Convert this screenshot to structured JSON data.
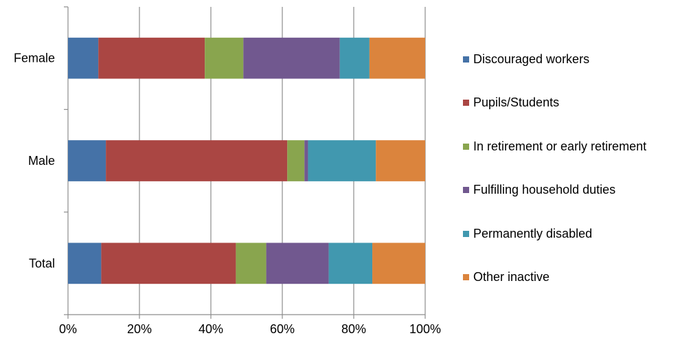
{
  "chart_data": {
    "type": "bar",
    "orientation": "horizontal",
    "stacked": true,
    "percent_stacked": true,
    "categories": [
      "Female",
      "Male",
      "Total"
    ],
    "series": [
      {
        "name": "Discouraged workers",
        "color": "#4572A7",
        "values": [
          8.5,
          10.6,
          9.3
        ]
      },
      {
        "name": "Pupils/Students",
        "color": "#AA4643",
        "values": [
          29.8,
          50.8,
          37.7
        ]
      },
      {
        "name": "In retirement or early retirement",
        "color": "#89A54E",
        "values": [
          10.8,
          4.8,
          8.5
        ]
      },
      {
        "name": "Fulfilling household duties",
        "color": "#71588F",
        "values": [
          27.0,
          1.0,
          17.5
        ]
      },
      {
        "name": "Permanently disabled",
        "color": "#4198AF",
        "values": [
          8.3,
          19.0,
          12.2
        ]
      },
      {
        "name": "Other inactive",
        "color": "#DB843D",
        "values": [
          15.6,
          13.8,
          14.8
        ]
      }
    ],
    "x_ticks": [
      "0%",
      "20%",
      "40%",
      "60%",
      "80%",
      "100%"
    ],
    "xlim": [
      0,
      100
    ],
    "grid": "vertical",
    "legend_position": "right",
    "title": "",
    "xlabel": "",
    "ylabel": ""
  }
}
